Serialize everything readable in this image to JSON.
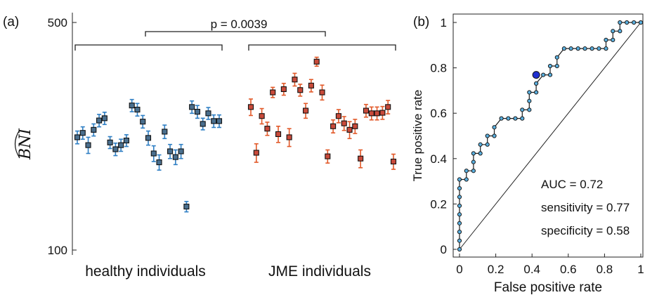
{
  "chart_data": [
    {
      "panel_label": "(a)",
      "type": "scatter",
      "ylabel": "BNI",
      "ylabel_hat": true,
      "yscale": "log",
      "ylim": [
        100,
        500
      ],
      "yticks": [
        "100",
        "500"
      ],
      "group_labels": [
        "healthy individuals",
        "JME individuals"
      ],
      "annotation": "p = 0.0039",
      "series": [
        {
          "name": "healthy individuals",
          "color": "#2f7fc4",
          "marker_fill": "#4a6f8e",
          "values": [
            222,
            229,
            210,
            234,
            250,
            254,
            214,
            204,
            210,
            217,
            278,
            270,
            248,
            221,
            198,
            186,
            231,
            201,
            193,
            201,
            136,
            275,
            266,
            244,
            263,
            249,
            249
          ],
          "err": [
            10,
            10,
            12,
            10,
            11,
            11,
            9,
            9,
            9,
            9,
            12,
            12,
            11,
            11,
            11,
            10,
            11,
            10,
            10,
            10,
            5,
            12,
            12,
            10,
            11,
            11,
            11
          ]
        },
        {
          "name": "JME individuals",
          "color": "#e25a2a",
          "marker_fill": "#c94a3a",
          "values": [
            275,
            199,
            258,
            236,
            305,
            227,
            312,
            222,
            334,
            310,
            268,
            320,
            379,
            305,
            194,
            240,
            258,
            245,
            234,
            240,
            191,
            268,
            263,
            263,
            264,
            275,
            187
          ],
          "err": [
            16,
            13,
            14,
            11,
            11,
            13,
            13,
            14,
            15,
            13,
            14,
            14,
            12,
            16,
            9,
            11,
            12,
            12,
            14,
            12,
            12,
            12,
            12,
            12,
            12,
            13,
            10
          ]
        }
      ]
    },
    {
      "panel_label": "(b)",
      "type": "line",
      "xlabel": "False positive rate",
      "ylabel": "True positive rate",
      "xlim": [
        0,
        1
      ],
      "ylim": [
        0,
        1
      ],
      "xticks": [
        "0",
        "0.2",
        "0.4",
        "0.6",
        "0.8",
        "1"
      ],
      "yticks": [
        "0",
        "0.2",
        "0.4",
        "0.6",
        "0.8",
        "1"
      ],
      "roc_x": [
        0,
        0,
        0,
        0,
        0,
        0,
        0,
        0,
        0,
        0.038,
        0.038,
        0.077,
        0.077,
        0.077,
        0.115,
        0.115,
        0.154,
        0.154,
        0.192,
        0.192,
        0.231,
        0.269,
        0.308,
        0.346,
        0.346,
        0.385,
        0.385,
        0.385,
        0.423,
        0.423,
        0.462,
        0.5,
        0.5,
        0.538,
        0.538,
        0.577,
        0.615,
        0.654,
        0.692,
        0.731,
        0.769,
        0.808,
        0.808,
        0.846,
        0.846,
        0.885,
        0.885,
        0.923,
        0.962,
        1
      ],
      "roc_y": [
        0,
        0.038,
        0.077,
        0.115,
        0.154,
        0.192,
        0.231,
        0.269,
        0.308,
        0.308,
        0.346,
        0.346,
        0.385,
        0.423,
        0.423,
        0.462,
        0.462,
        0.5,
        0.5,
        0.538,
        0.577,
        0.577,
        0.577,
        0.577,
        0.615,
        0.615,
        0.654,
        0.692,
        0.692,
        0.731,
        0.769,
        0.769,
        0.808,
        0.808,
        0.846,
        0.885,
        0.885,
        0.885,
        0.885,
        0.885,
        0.885,
        0.885,
        0.923,
        0.923,
        0.962,
        0.962,
        1,
        1,
        1,
        1
      ],
      "operating_point": {
        "x": 0.423,
        "y": 0.769,
        "color": "#2030d0"
      },
      "roc_color": "#5ab0e0",
      "annotations": [
        "AUC = 0.72",
        "sensitivity = 0.77",
        "specificity = 0.58"
      ]
    }
  ]
}
